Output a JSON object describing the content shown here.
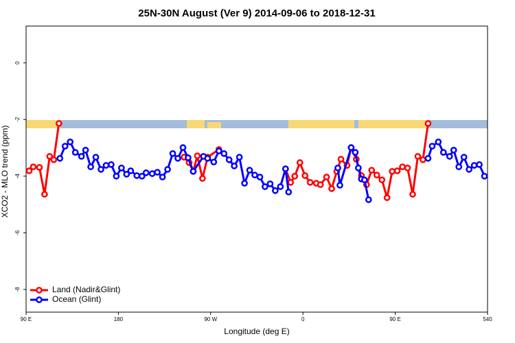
{
  "chart_data": {
    "type": "line",
    "title": "25N-30N August (Ver 9)   2014-09-06 to 2018-12-31",
    "xlabel": "Longitude (deg E)",
    "ylabel": "XCO2 - MLO trend (ppm)",
    "xlim": [
      90,
      540
    ],
    "ylim": [
      -8.8,
      1.3
    ],
    "xticks": [
      {
        "value": 90,
        "label": "90 E"
      },
      180,
      {
        "value": 270,
        "label": "90 W"
      },
      {
        "value": 360,
        "label": "0"
      },
      {
        "value": 450,
        "label": "90 E"
      },
      540
    ],
    "yticks": [
      0,
      -2,
      -4,
      -6,
      -8
    ],
    "legend": "bottom-left",
    "series": [
      {
        "name": "Land (Nadir&Glint)",
        "color": "#ff0000",
        "x": [
          93,
          97,
          103,
          108,
          113,
          117,
          122,
          null,
          244,
          249,
          253,
          257,
          262,
          267,
          278,
          null,
          343,
          348,
          352,
          357,
          362,
          367,
          373,
          377,
          383,
          388,
          393,
          397,
          403,
          407,
          412,
          417,
          422,
          427,
          432,
          437,
          442,
          447,
          452,
          457,
          462,
          467,
          472,
          477,
          482
        ],
        "values": [
          -3.81,
          -3.67,
          -3.69,
          -4.64,
          -3.3,
          -3.42,
          -2.14,
          null,
          -3.33,
          -3.52,
          -3.83,
          -3.28,
          -4.08,
          -3.33,
          -3.06,
          null,
          -3.74,
          -4.22,
          -4.0,
          -3.52,
          -3.98,
          -4.22,
          -4.25,
          -4.3,
          -4.03,
          -4.44,
          -3.83,
          -3.4,
          -3.62,
          -2.99,
          -3.4,
          -3.98,
          -4.3,
          -3.79,
          -3.96,
          -4.13,
          -4.76,
          -3.83,
          -3.81,
          -3.67,
          -3.71,
          -4.64,
          -3.3,
          -3.42,
          -2.14
        ]
      },
      {
        "name": "Ocean (Glint)",
        "color": "#0000ff",
        "x": [
          123,
          128,
          133,
          138,
          144,
          148,
          153,
          158,
          163,
          168,
          173,
          178,
          183,
          188,
          192,
          198,
          203,
          207,
          213,
          218,
          223,
          228,
          233,
          238,
          243,
          248,
          253,
          263,
          267,
          273,
          278,
          283,
          288,
          293,
          298,
          303,
          308,
          313,
          318,
          323,
          328,
          333,
          338,
          343,
          346,
          null,
          394,
          396,
          407,
          411,
          414,
          417,
          420,
          424,
          null,
          482,
          486,
          492,
          497,
          503,
          507,
          512,
          517,
          522,
          527,
          532,
          537
        ],
        "values": [
          -3.37,
          -2.94,
          -2.79,
          -3.16,
          -3.3,
          -3.08,
          -3.67,
          -3.33,
          -3.76,
          -3.62,
          -3.59,
          -4.0,
          -3.71,
          -3.93,
          -3.81,
          -3.98,
          -4.0,
          -3.88,
          -3.91,
          -3.86,
          -4.03,
          -3.76,
          -3.2,
          -3.37,
          -2.99,
          -3.35,
          -3.83,
          -3.3,
          -3.37,
          -3.5,
          -3.11,
          -3.2,
          -3.42,
          -3.64,
          -3.33,
          -4.25,
          -3.79,
          -3.96,
          -4.03,
          -4.37,
          -4.27,
          -4.51,
          -4.37,
          -3.74,
          -4.56,
          null,
          -3.71,
          -4.32,
          -2.99,
          -3.16,
          -3.71,
          -4.1,
          -4.13,
          -4.83,
          null,
          -3.37,
          -2.94,
          -2.79,
          -3.16,
          -3.3,
          -3.08,
          -3.67,
          -3.33,
          -3.76,
          -3.62,
          -3.59,
          -4.0
        ]
      }
    ]
  }
}
